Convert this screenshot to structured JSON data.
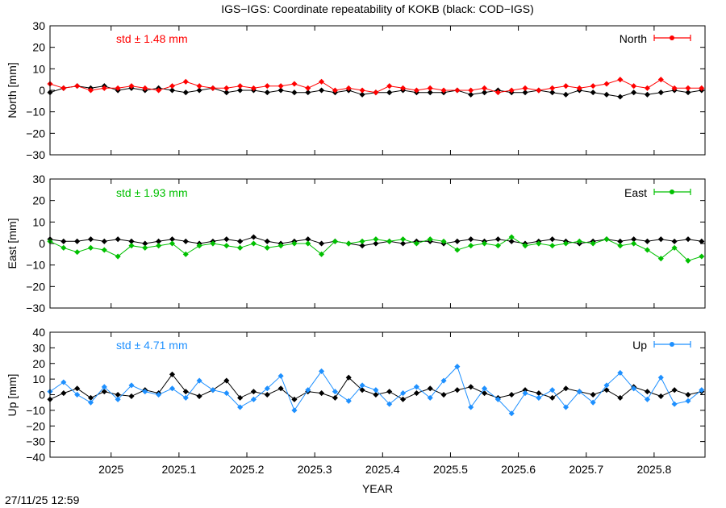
{
  "title": "IGS−IGS: Coordinate repeatability of KOKB (black: COD−IGS)",
  "xlabel": "YEAR",
  "timestamp": "27/11/25 12:59",
  "colors": {
    "reference": "#000000",
    "north": "#ff0000",
    "east": "#00c000",
    "up": "#1e90ff"
  },
  "chart_data": [
    {
      "type": "line",
      "panel": "north",
      "ylabel": "North [mm]",
      "legend": "North",
      "legend_position": "top-right",
      "std_label": "std ± 1.48 mm",
      "color": "#ff0000",
      "xlim": [
        2024.91,
        2025.875
      ],
      "ylim": [
        -30,
        30
      ],
      "xticks": [
        "2025",
        "2025.1",
        "2025.2",
        "2025.3",
        "2025.4",
        "2025.5",
        "2025.6",
        "2025.7",
        "2025.8"
      ],
      "yticks": [
        "30",
        "20",
        "10",
        "0",
        "−10",
        "−20",
        "−30"
      ],
      "series": [
        {
          "name": "North",
          "color": "#ff0000",
          "x": [
            2024.91,
            2024.93,
            2024.95,
            2024.97,
            2024.99,
            2025.01,
            2025.03,
            2025.05,
            2025.07,
            2025.09,
            2025.11,
            2025.13,
            2025.15,
            2025.17,
            2025.19,
            2025.21,
            2025.23,
            2025.25,
            2025.27,
            2025.29,
            2025.31,
            2025.33,
            2025.35,
            2025.37,
            2025.39,
            2025.41,
            2025.43,
            2025.45,
            2025.47,
            2025.49,
            2025.51,
            2025.53,
            2025.55,
            2025.57,
            2025.59,
            2025.61,
            2025.63,
            2025.65,
            2025.67,
            2025.69,
            2025.71,
            2025.73,
            2025.75,
            2025.77,
            2025.79,
            2025.81,
            2025.83,
            2025.85,
            2025.87
          ],
          "y": [
            3,
            1,
            2,
            0,
            1,
            1,
            2,
            1,
            0,
            2,
            4,
            2,
            1,
            1,
            2,
            1,
            2,
            2,
            3,
            1,
            4,
            0,
            1,
            0,
            -1,
            2,
            1,
            0,
            1,
            0,
            0,
            0,
            1,
            -1,
            0,
            1,
            0,
            1,
            2,
            1,
            2,
            3,
            5,
            2,
            1,
            5,
            1,
            1,
            1
          ]
        },
        {
          "name": "",
          "color": "#000000",
          "x": [
            2024.91,
            2024.93,
            2024.95,
            2024.97,
            2024.99,
            2025.01,
            2025.03,
            2025.05,
            2025.07,
            2025.09,
            2025.11,
            2025.13,
            2025.15,
            2025.17,
            2025.19,
            2025.21,
            2025.23,
            2025.25,
            2025.27,
            2025.29,
            2025.31,
            2025.33,
            2025.35,
            2025.37,
            2025.39,
            2025.41,
            2025.43,
            2025.45,
            2025.47,
            2025.49,
            2025.51,
            2025.53,
            2025.55,
            2025.57,
            2025.59,
            2025.61,
            2025.63,
            2025.65,
            2025.67,
            2025.69,
            2025.71,
            2025.73,
            2025.75,
            2025.77,
            2025.79,
            2025.81,
            2025.83,
            2025.85,
            2025.87
          ],
          "y": [
            -1,
            1,
            2,
            1,
            2,
            0,
            1,
            0,
            1,
            0,
            -1,
            0,
            1,
            -1,
            0,
            0,
            -1,
            0,
            -1,
            -1,
            0,
            -1,
            0,
            -2,
            -1,
            -1,
            0,
            -1,
            -1,
            -1,
            0,
            -2,
            -1,
            0,
            -1,
            -1,
            0,
            -1,
            -2,
            0,
            -1,
            -2,
            -3,
            -1,
            -2,
            -1,
            0,
            -1,
            0
          ]
        }
      ]
    },
    {
      "type": "line",
      "panel": "east",
      "ylabel": "East [mm]",
      "legend": "East",
      "legend_position": "top-right",
      "std_label": "std ± 1.93 mm",
      "color": "#00c000",
      "xlim": [
        2024.91,
        2025.875
      ],
      "ylim": [
        -30,
        30
      ],
      "xticks": [
        "2025",
        "2025.1",
        "2025.2",
        "2025.3",
        "2025.4",
        "2025.5",
        "2025.6",
        "2025.7",
        "2025.8"
      ],
      "yticks": [
        "30",
        "20",
        "10",
        "0",
        "−10",
        "−20",
        "−30"
      ],
      "series": [
        {
          "name": "East",
          "color": "#00c000",
          "x": [
            2024.91,
            2024.93,
            2024.95,
            2024.97,
            2024.99,
            2025.01,
            2025.03,
            2025.05,
            2025.07,
            2025.09,
            2025.11,
            2025.13,
            2025.15,
            2025.17,
            2025.19,
            2025.21,
            2025.23,
            2025.25,
            2025.27,
            2025.29,
            2025.31,
            2025.33,
            2025.35,
            2025.37,
            2025.39,
            2025.41,
            2025.43,
            2025.45,
            2025.47,
            2025.49,
            2025.51,
            2025.53,
            2025.55,
            2025.57,
            2025.59,
            2025.61,
            2025.63,
            2025.65,
            2025.67,
            2025.69,
            2025.71,
            2025.73,
            2025.75,
            2025.77,
            2025.79,
            2025.81,
            2025.83,
            2025.85,
            2025.87
          ],
          "y": [
            1,
            -2,
            -4,
            -2,
            -3,
            -6,
            -1,
            -2,
            -1,
            0,
            -5,
            -1,
            0,
            -1,
            -2,
            0,
            -2,
            -1,
            0,
            0,
            -5,
            1,
            0,
            1,
            2,
            1,
            2,
            0,
            2,
            1,
            -3,
            -1,
            0,
            -1,
            3,
            -1,
            0,
            -1,
            0,
            1,
            0,
            2,
            -1,
            0,
            -3,
            -7,
            -2,
            -8,
            -6
          ]
        },
        {
          "name": "",
          "color": "#000000",
          "x": [
            2024.91,
            2024.93,
            2024.95,
            2024.97,
            2024.99,
            2025.01,
            2025.03,
            2025.05,
            2025.07,
            2025.09,
            2025.11,
            2025.13,
            2025.15,
            2025.17,
            2025.19,
            2025.21,
            2025.23,
            2025.25,
            2025.27,
            2025.29,
            2025.31,
            2025.33,
            2025.35,
            2025.37,
            2025.39,
            2025.41,
            2025.43,
            2025.45,
            2025.47,
            2025.49,
            2025.51,
            2025.53,
            2025.55,
            2025.57,
            2025.59,
            2025.61,
            2025.63,
            2025.65,
            2025.67,
            2025.69,
            2025.71,
            2025.73,
            2025.75,
            2025.77,
            2025.79,
            2025.81,
            2025.83,
            2025.85,
            2025.87
          ],
          "y": [
            2,
            1,
            1,
            2,
            1,
            2,
            1,
            0,
            1,
            2,
            1,
            0,
            1,
            2,
            1,
            3,
            1,
            0,
            1,
            2,
            0,
            1,
            0,
            -1,
            0,
            1,
            0,
            1,
            1,
            0,
            1,
            2,
            1,
            2,
            1,
            0,
            1,
            2,
            1,
            0,
            1,
            2,
            1,
            2,
            1,
            2,
            1,
            2,
            1
          ]
        }
      ]
    },
    {
      "type": "line",
      "panel": "up",
      "ylabel": "Up [mm]",
      "legend": "Up",
      "legend_position": "top-right",
      "std_label": "std ± 4.71 mm",
      "color": "#1e90ff",
      "xlim": [
        2024.91,
        2025.875
      ],
      "ylim": [
        -40,
        40
      ],
      "xticks": [
        "2025",
        "2025.1",
        "2025.2",
        "2025.3",
        "2025.4",
        "2025.5",
        "2025.6",
        "2025.7",
        "2025.8"
      ],
      "yticks": [
        "40",
        "30",
        "20",
        "10",
        "0",
        "−10",
        "−20",
        "−30",
        "−40"
      ],
      "series": [
        {
          "name": "Up",
          "color": "#1e90ff",
          "x": [
            2024.91,
            2024.93,
            2024.95,
            2024.97,
            2024.99,
            2025.01,
            2025.03,
            2025.05,
            2025.07,
            2025.09,
            2025.11,
            2025.13,
            2025.15,
            2025.17,
            2025.19,
            2025.21,
            2025.23,
            2025.25,
            2025.27,
            2025.29,
            2025.31,
            2025.33,
            2025.35,
            2025.37,
            2025.39,
            2025.41,
            2025.43,
            2025.45,
            2025.47,
            2025.49,
            2025.51,
            2025.53,
            2025.55,
            2025.57,
            2025.59,
            2025.61,
            2025.63,
            2025.65,
            2025.67,
            2025.69,
            2025.71,
            2025.73,
            2025.75,
            2025.77,
            2025.79,
            2025.81,
            2025.83,
            2025.85,
            2025.87
          ],
          "y": [
            2,
            8,
            0,
            -5,
            5,
            -3,
            6,
            2,
            0,
            4,
            -2,
            9,
            3,
            1,
            -8,
            -3,
            4,
            12,
            -10,
            3,
            15,
            2,
            -4,
            6,
            3,
            -6,
            1,
            5,
            -2,
            9,
            18,
            -8,
            4,
            -3,
            -12,
            1,
            -2,
            3,
            -8,
            2,
            -5,
            6,
            14,
            4,
            -3,
            11,
            -6,
            -4,
            3
          ]
        },
        {
          "name": "",
          "color": "#000000",
          "x": [
            2024.91,
            2024.93,
            2024.95,
            2024.97,
            2024.99,
            2025.01,
            2025.03,
            2025.05,
            2025.07,
            2025.09,
            2025.11,
            2025.13,
            2025.15,
            2025.17,
            2025.19,
            2025.21,
            2025.23,
            2025.25,
            2025.27,
            2025.29,
            2025.31,
            2025.33,
            2025.35,
            2025.37,
            2025.39,
            2025.41,
            2025.43,
            2025.45,
            2025.47,
            2025.49,
            2025.51,
            2025.53,
            2025.55,
            2025.57,
            2025.59,
            2025.61,
            2025.63,
            2025.65,
            2025.67,
            2025.69,
            2025.71,
            2025.73,
            2025.75,
            2025.77,
            2025.79,
            2025.81,
            2025.83,
            2025.85,
            2025.87
          ],
          "y": [
            -3,
            1,
            4,
            -2,
            2,
            0,
            -1,
            3,
            1,
            13,
            2,
            -1,
            3,
            9,
            -2,
            2,
            0,
            4,
            -3,
            2,
            1,
            -2,
            11,
            3,
            0,
            2,
            -3,
            1,
            4,
            0,
            3,
            5,
            1,
            -2,
            0,
            3,
            1,
            -2,
            4,
            2,
            0,
            3,
            -2,
            5,
            2,
            -1,
            3,
            0,
            2
          ]
        }
      ]
    }
  ]
}
